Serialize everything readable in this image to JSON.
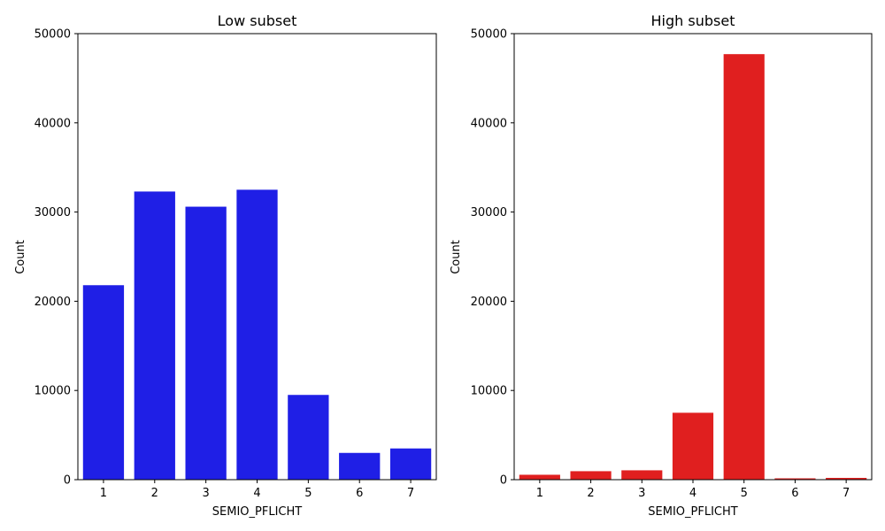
{
  "chart_data": [
    {
      "type": "bar",
      "title": "Low subset",
      "xlabel": "SEMIO_PFLICHT",
      "ylabel": "Count",
      "categories": [
        "1",
        "2",
        "3",
        "4",
        "5",
        "6",
        "7"
      ],
      "values": [
        21800,
        32300,
        30600,
        32500,
        9500,
        3000,
        3500
      ],
      "ylim": [
        0,
        50000
      ],
      "yticks": [
        0,
        10000,
        20000,
        30000,
        40000,
        50000
      ],
      "bar_color": "#1f1fe6"
    },
    {
      "type": "bar",
      "title": "High subset",
      "xlabel": "SEMIO_PFLICHT",
      "ylabel": "Count",
      "categories": [
        "1",
        "2",
        "3",
        "4",
        "5",
        "6",
        "7"
      ],
      "values": [
        550,
        950,
        1050,
        7500,
        47700,
        150,
        200
      ],
      "ylim": [
        0,
        50000
      ],
      "yticks": [
        0,
        10000,
        20000,
        30000,
        40000,
        50000
      ],
      "bar_color": "#e01f1f"
    }
  ]
}
